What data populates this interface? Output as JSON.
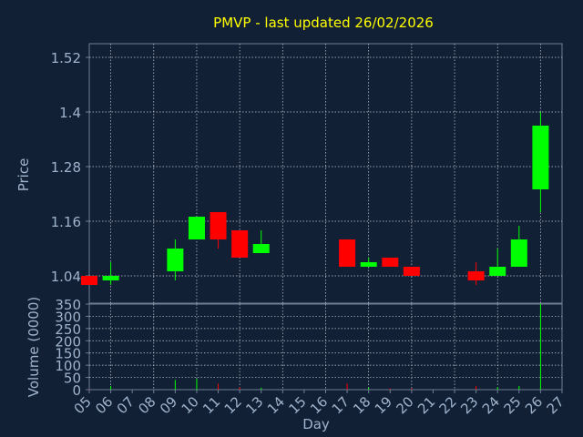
{
  "chart_data": {
    "type": "candlestick",
    "title": "PMVP - last updated 26/02/2026",
    "xlabel": "Day",
    "price_ylabel": "Price",
    "volume_ylabel": "Volume (0000)",
    "x_ticks": [
      "05",
      "06",
      "07",
      "08",
      "09",
      "10",
      "11",
      "12",
      "13",
      "14",
      "15",
      "16",
      "17",
      "18",
      "19",
      "20",
      "21",
      "22",
      "23",
      "24",
      "25",
      "26",
      "27"
    ],
    "price_ylim": [
      0.98,
      1.55
    ],
    "price_ticks": [
      1.04,
      1.16,
      1.28,
      1.4,
      1.52
    ],
    "price_tick_labels": [
      "1.04",
      "1.16",
      "1.28",
      "1.4",
      "1.52"
    ],
    "volume_ylim": [
      0,
      350
    ],
    "volume_ticks": [
      0,
      50,
      100,
      150,
      200,
      250,
      300,
      350
    ],
    "volume_tick_labels": [
      "0",
      "50",
      "100",
      "150",
      "200",
      "250",
      "300",
      "350"
    ],
    "candles": [
      {
        "day": 5,
        "open": 1.04,
        "close": 1.02,
        "high": 1.04,
        "low": 1.02,
        "volume": 2
      },
      {
        "day": 6,
        "open": 1.03,
        "close": 1.04,
        "high": 1.07,
        "low": 1.02,
        "volume": 15
      },
      {
        "day": 9,
        "open": 1.05,
        "close": 1.1,
        "high": 1.12,
        "low": 1.03,
        "volume": 40
      },
      {
        "day": 10,
        "open": 1.12,
        "close": 1.17,
        "high": 1.17,
        "low": 1.12,
        "volume": 45
      },
      {
        "day": 11,
        "open": 1.18,
        "close": 1.12,
        "high": 1.18,
        "low": 1.1,
        "volume": 25
      },
      {
        "day": 12,
        "open": 1.14,
        "close": 1.08,
        "high": 1.14,
        "low": 1.08,
        "volume": 10
      },
      {
        "day": 13,
        "open": 1.09,
        "close": 1.11,
        "high": 1.14,
        "low": 1.09,
        "volume": 8
      },
      {
        "day": 17,
        "open": 1.12,
        "close": 1.06,
        "high": 1.12,
        "low": 1.06,
        "volume": 25
      },
      {
        "day": 18,
        "open": 1.06,
        "close": 1.07,
        "high": 1.08,
        "low": 1.06,
        "volume": 8
      },
      {
        "day": 19,
        "open": 1.08,
        "close": 1.06,
        "high": 1.08,
        "low": 1.06,
        "volume": 5
      },
      {
        "day": 20,
        "open": 1.06,
        "close": 1.04,
        "high": 1.06,
        "low": 1.04,
        "volume": 5
      },
      {
        "day": 23,
        "open": 1.05,
        "close": 1.03,
        "high": 1.07,
        "low": 1.02,
        "volume": 15
      },
      {
        "day": 24,
        "open": 1.04,
        "close": 1.06,
        "high": 1.1,
        "low": 1.04,
        "volume": 10
      },
      {
        "day": 25,
        "open": 1.06,
        "close": 1.12,
        "high": 1.15,
        "low": 1.06,
        "volume": 15
      },
      {
        "day": 26,
        "open": 1.23,
        "close": 1.37,
        "high": 1.4,
        "low": 1.18,
        "volume": 350
      }
    ],
    "colors": {
      "background": "#112035",
      "plot_border": "#6f7f94",
      "grid": "#c8ccd4",
      "axis_text": "#9fb3cc",
      "title": "#ffff00",
      "up": "#00ff00",
      "down": "#ff0000"
    }
  }
}
